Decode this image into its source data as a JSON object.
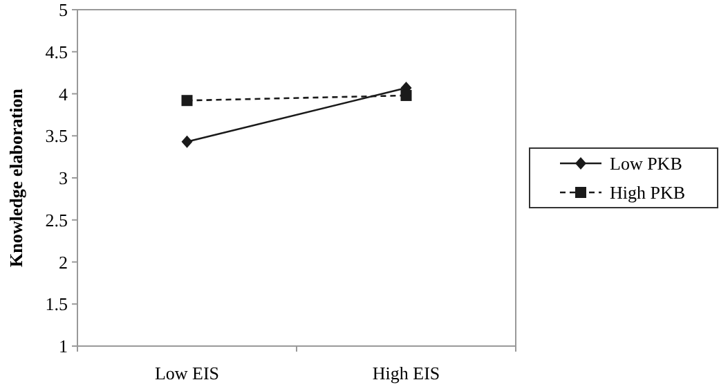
{
  "chart_data": {
    "type": "line",
    "ylabel": "Knowledge elaboration",
    "categories": [
      "Low EIS",
      "High EIS"
    ],
    "series": [
      {
        "name": "Low PKB",
        "color": "#1a1a1a",
        "values": [
          3.43,
          4.07
        ],
        "marker": "diamond",
        "line_style": "solid"
      },
      {
        "name": "High PKB",
        "color": "#1a1a1a",
        "values": [
          3.92,
          3.98
        ],
        "marker": "square",
        "line_style": "dashed"
      }
    ],
    "ylim": [
      1,
      5
    ],
    "yticks": [
      1,
      1.5,
      2,
      2.5,
      3,
      3.5,
      4,
      4.5,
      5
    ],
    "grid": false,
    "legend": "right"
  }
}
